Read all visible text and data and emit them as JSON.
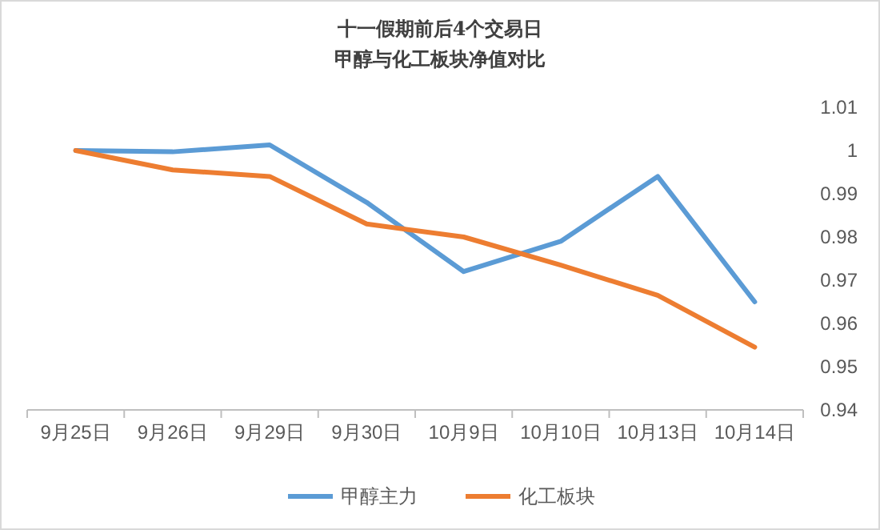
{
  "chart_data": {
    "type": "line",
    "title": "十一假期前后4个交易日",
    "subtitle": "甲醇与化工板块净值对比",
    "categories": [
      "9月25日",
      "9月26日",
      "9月29日",
      "9月30日",
      "10月9日",
      "10月10日",
      "10月13日",
      "10月14日"
    ],
    "series": [
      {
        "name": "甲醇主力",
        "color": "#5b9bd5",
        "values": [
          1.0,
          0.9997,
          1.0013,
          0.988,
          0.972,
          0.979,
          0.994,
          0.965
        ]
      },
      {
        "name": "化工板块",
        "color": "#ed7d31",
        "values": [
          1.0,
          0.9955,
          0.994,
          0.983,
          0.98,
          0.9735,
          0.9665,
          0.9545
        ]
      }
    ],
    "ylim": [
      0.94,
      1.01
    ],
    "yticks": [
      0.94,
      0.95,
      0.96,
      0.97,
      0.98,
      0.99,
      1,
      1.01
    ],
    "grid": false,
    "legend": "bottom",
    "marker": "none",
    "line_style": "solid"
  }
}
